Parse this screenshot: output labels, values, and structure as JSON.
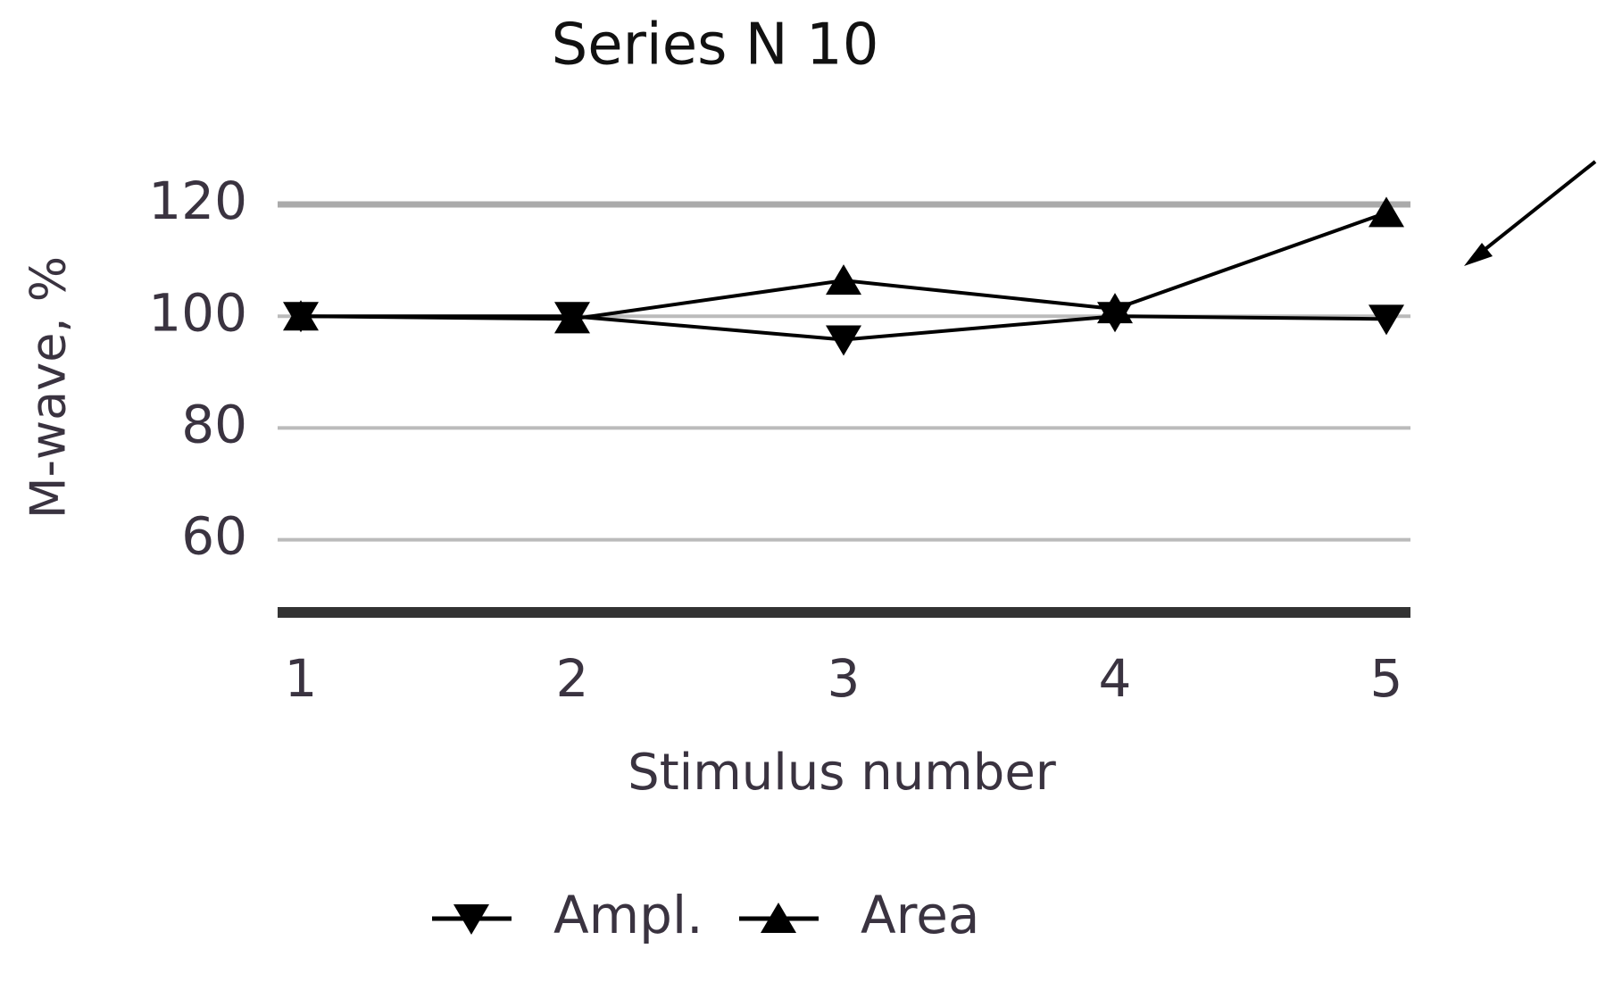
{
  "chart_data": {
    "type": "line",
    "title": "Series N 10",
    "x_label": "Stimulus number",
    "y_label": "M-wave, %",
    "categories": [
      "1",
      "2",
      "3",
      "4",
      "5"
    ],
    "series": [
      {
        "name": "Ampl.",
        "color": "#000000",
        "marker": "triangle-down",
        "values": [
          100,
          100,
          95.8,
          100,
          99.5
        ]
      },
      {
        "name": "Area",
        "color": "#000000",
        "marker": "triangle-up",
        "values": [
          100,
          99.5,
          106.4,
          101.3,
          118.5
        ]
      }
    ],
    "ylim": [
      47,
      120
    ],
    "yticks": [
      60,
      80,
      100,
      120
    ],
    "grid": true,
    "legend": "bottom"
  }
}
